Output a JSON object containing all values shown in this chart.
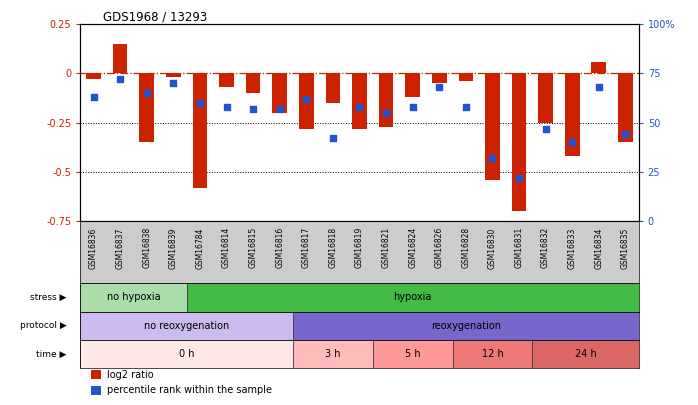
{
  "title": "GDS1968 / 13293",
  "samples": [
    "GSM16836",
    "GSM16837",
    "GSM16838",
    "GSM16839",
    "GSM16784",
    "GSM16814",
    "GSM16815",
    "GSM16816",
    "GSM16817",
    "GSM16818",
    "GSM16819",
    "GSM16821",
    "GSM16824",
    "GSM16826",
    "GSM16828",
    "GSM16830",
    "GSM16831",
    "GSM16832",
    "GSM16833",
    "GSM16834",
    "GSM16835"
  ],
  "log2_ratio": [
    -0.03,
    0.15,
    -0.35,
    -0.02,
    -0.58,
    -0.07,
    -0.1,
    -0.2,
    -0.28,
    -0.15,
    -0.28,
    -0.27,
    -0.12,
    -0.05,
    -0.04,
    -0.54,
    -0.7,
    -0.25,
    -0.42,
    0.06,
    -0.35
  ],
  "percentile_rank": [
    63,
    72,
    65,
    70,
    60,
    58,
    57,
    57,
    62,
    42,
    58,
    55,
    58,
    68,
    58,
    32,
    22,
    47,
    40,
    68,
    44
  ],
  "bar_color": "#cc2200",
  "dot_color": "#2255cc",
  "ylim_left": [
    -0.75,
    0.25
  ],
  "ylim_right": [
    0,
    100
  ],
  "yticks_left": [
    0.25,
    0,
    -0.25,
    -0.5,
    -0.75
  ],
  "ytick_labels_left": [
    "0.25",
    "0",
    "-0.25",
    "-0.5",
    "-0.75"
  ],
  "yticks_right": [
    100,
    75,
    50,
    25,
    0
  ],
  "ytick_labels_right": [
    "100%",
    "75",
    "50",
    "25",
    "0"
  ],
  "stress_groups": [
    {
      "label": "no hypoxia",
      "start": 0,
      "end": 4,
      "color": "#aaddaa"
    },
    {
      "label": "hypoxia",
      "start": 4,
      "end": 21,
      "color": "#44bb44"
    }
  ],
  "protocol_groups": [
    {
      "label": "no reoxygenation",
      "start": 0,
      "end": 8,
      "color": "#ccbbee"
    },
    {
      "label": "reoxygenation",
      "start": 8,
      "end": 21,
      "color": "#7766cc"
    }
  ],
  "time_groups": [
    {
      "label": "0 h",
      "start": 0,
      "end": 8,
      "color": "#ffe8e8"
    },
    {
      "label": "3 h",
      "start": 8,
      "end": 11,
      "color": "#ffbbbb"
    },
    {
      "label": "5 h",
      "start": 11,
      "end": 14,
      "color": "#ff9999"
    },
    {
      "label": "12 h",
      "start": 14,
      "end": 17,
      "color": "#ee7777"
    },
    {
      "label": "24 h",
      "start": 17,
      "end": 21,
      "color": "#dd6666"
    }
  ],
  "row_label_stress": "stress",
  "row_label_protocol": "protocol",
  "row_label_time": "time",
  "legend_log2": "log2 ratio",
  "legend_pct": "percentile rank within the sample",
  "xtick_area_color": "#cccccc",
  "row_label_color": "#555555"
}
